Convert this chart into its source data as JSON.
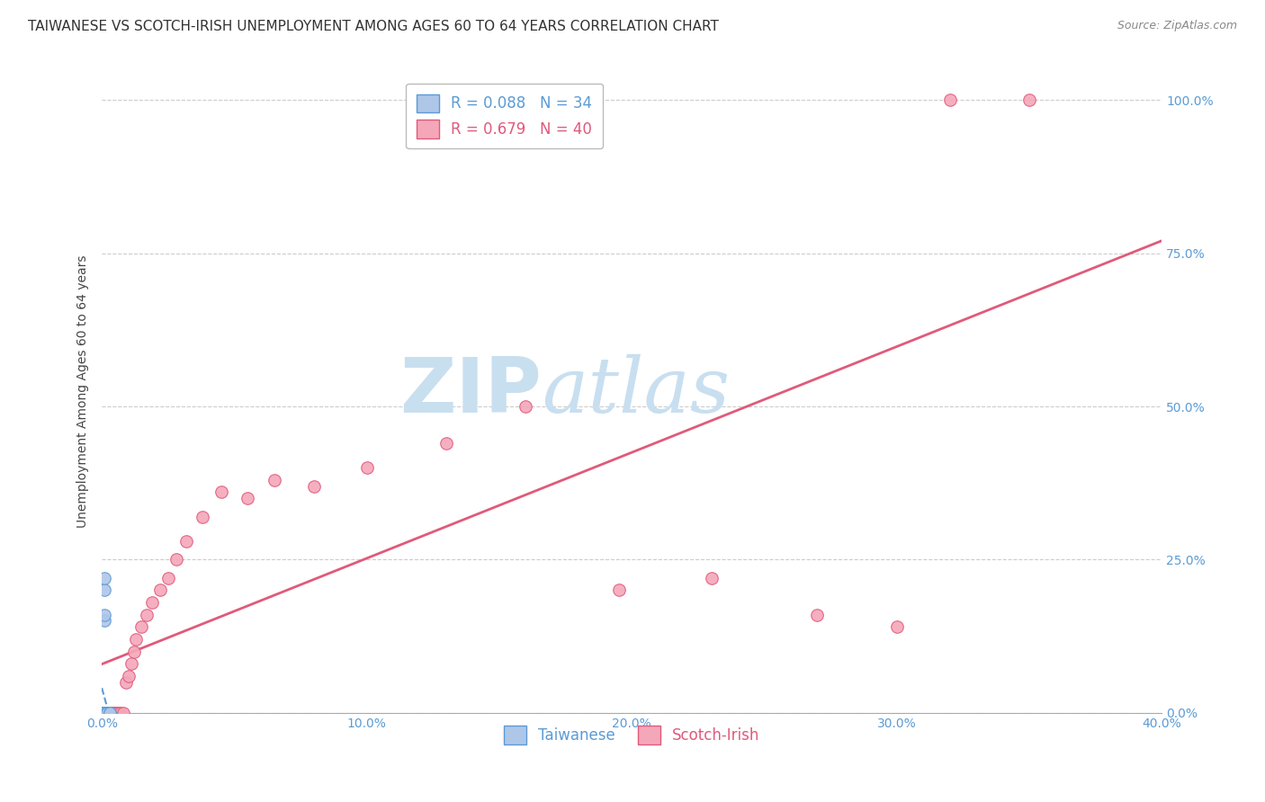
{
  "title": "TAIWANESE VS SCOTCH-IRISH UNEMPLOYMENT AMONG AGES 60 TO 64 YEARS CORRELATION CHART",
  "source": "Source: ZipAtlas.com",
  "ylabel": "Unemployment Among Ages 60 to 64 years",
  "xlim": [
    0.0,
    0.4
  ],
  "ylim": [
    0.0,
    1.05
  ],
  "xticks": [
    0.0,
    0.1,
    0.2,
    0.3,
    0.4
  ],
  "xticklabels": [
    "0.0%",
    "10.0%",
    "20.0%",
    "30.0%",
    "40.0%"
  ],
  "yticks": [
    0.0,
    0.25,
    0.5,
    0.75,
    1.0
  ],
  "yticklabels": [
    "0.0%",
    "25.0%",
    "50.0%",
    "75.0%",
    "100.0%"
  ],
  "taiwanese_color": "#aec6e8",
  "taiwanese_edge_color": "#5b9bd5",
  "scotchirish_color": "#f4a7b9",
  "scotchirish_edge_color": "#e05a7a",
  "taiwanese_R": 0.088,
  "taiwanese_N": 34,
  "scotchirish_R": 0.679,
  "scotchirish_N": 40,
  "taiwanese_line_color": "#5b9bd5",
  "scotchirish_line_color": "#e05a7a",
  "watermark_zip": "ZIP",
  "watermark_atlas": "atlas",
  "watermark_color": "#c8dff0",
  "taiwanese_x": [
    0.001,
    0.001,
    0.001,
    0.001,
    0.001,
    0.001,
    0.001,
    0.001,
    0.001,
    0.001,
    0.001,
    0.001,
    0.001,
    0.001,
    0.001,
    0.001,
    0.001,
    0.001,
    0.001,
    0.001,
    0.001,
    0.001,
    0.001,
    0.001,
    0.001,
    0.002,
    0.002,
    0.002,
    0.003,
    0.003,
    0.001,
    0.001,
    0.001,
    0.001
  ],
  "taiwanese_y": [
    0.0,
    0.0,
    0.0,
    0.0,
    0.0,
    0.0,
    0.0,
    0.0,
    0.0,
    0.0,
    0.0,
    0.0,
    0.0,
    0.0,
    0.0,
    0.0,
    0.0,
    0.0,
    0.0,
    0.0,
    0.0,
    0.0,
    0.0,
    0.0,
    0.0,
    0.0,
    0.0,
    0.0,
    0.0,
    0.0,
    0.2,
    0.15,
    0.22,
    0.16
  ],
  "scotchirish_x": [
    0.001,
    0.001,
    0.002,
    0.002,
    0.003,
    0.003,
    0.004,
    0.004,
    0.005,
    0.005,
    0.006,
    0.006,
    0.007,
    0.008,
    0.009,
    0.01,
    0.011,
    0.012,
    0.013,
    0.015,
    0.017,
    0.019,
    0.022,
    0.025,
    0.028,
    0.032,
    0.038,
    0.045,
    0.055,
    0.065,
    0.08,
    0.1,
    0.13,
    0.16,
    0.195,
    0.23,
    0.27,
    0.3,
    0.32,
    0.35
  ],
  "scotchirish_y": [
    0.0,
    0.0,
    0.0,
    0.0,
    0.0,
    0.0,
    0.0,
    0.0,
    0.0,
    0.0,
    0.0,
    0.0,
    0.0,
    0.0,
    0.05,
    0.06,
    0.08,
    0.1,
    0.12,
    0.14,
    0.16,
    0.18,
    0.2,
    0.22,
    0.25,
    0.28,
    0.32,
    0.36,
    0.35,
    0.38,
    0.37,
    0.4,
    0.44,
    0.5,
    0.2,
    0.22,
    0.16,
    0.14,
    1.0,
    1.0
  ],
  "marker_size": 95,
  "grid_color": "#cccccc",
  "background_color": "#ffffff",
  "title_fontsize": 11,
  "axis_label_fontsize": 10,
  "tick_fontsize": 10,
  "legend_fontsize": 12,
  "source_fontsize": 9
}
